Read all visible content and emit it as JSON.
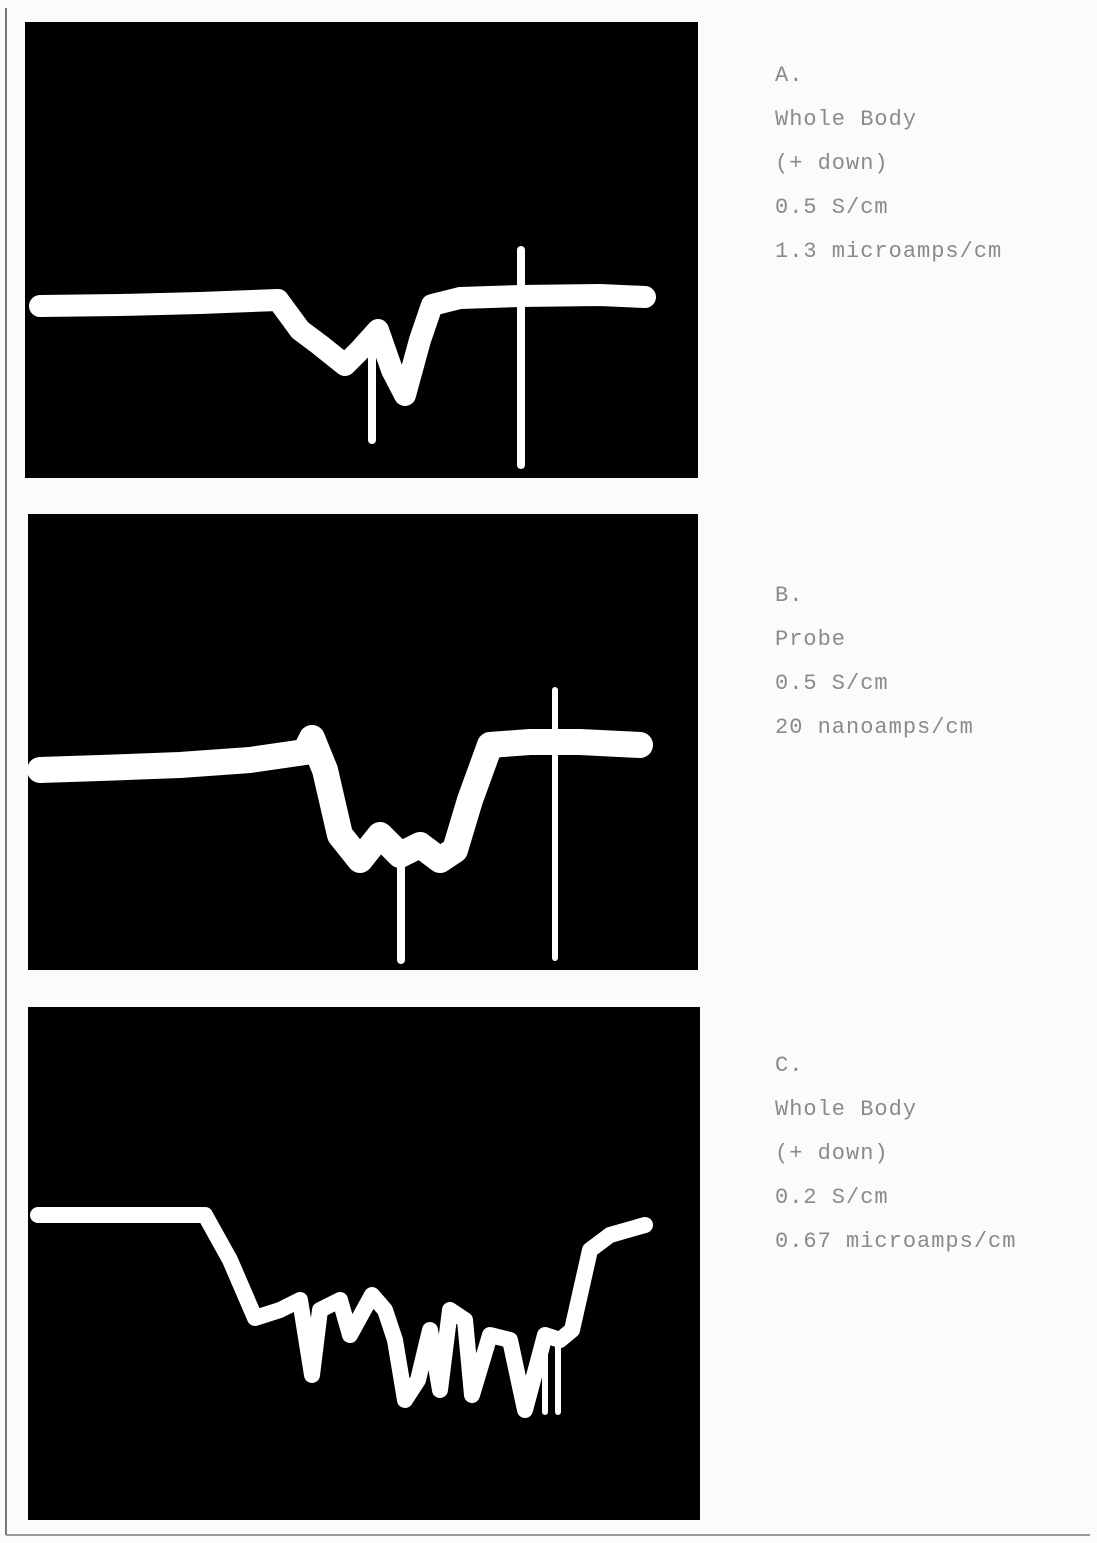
{
  "panels": [
    {
      "label": "A.",
      "lines": [
        "Whole Body",
        "(+ down)",
        "0.5 S/cm",
        "1.3 microamps/cm"
      ]
    },
    {
      "label": "B.",
      "lines": [
        "Probe",
        "0.5 S/cm",
        "20 nanoamps/cm"
      ]
    },
    {
      "label": "C.",
      "lines": [
        "Whole Body",
        "(+ down)",
        "0.2 S/cm",
        "0.67 microamps/cm"
      ]
    }
  ]
}
